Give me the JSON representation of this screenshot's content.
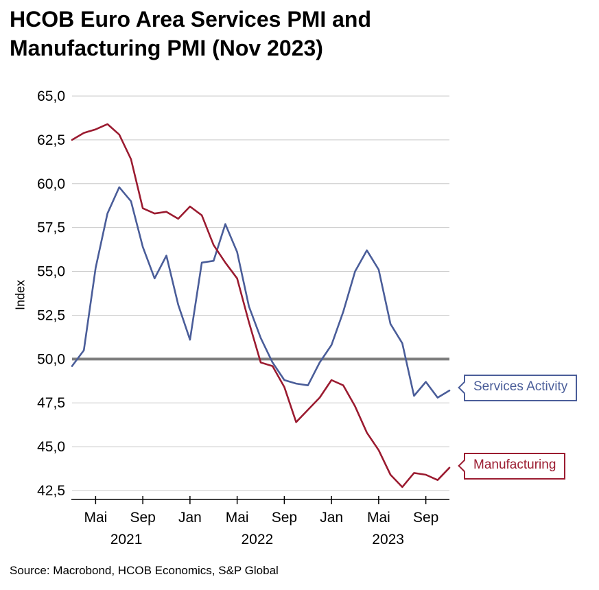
{
  "title": "HCOB Euro Area Services PMI and\nManufacturing PMI (Nov 2023)",
  "source": "Source: Macrobond, HCOB Economics, S&P Global",
  "callouts": {
    "services": {
      "label": "Services Activity",
      "color": "#4a5d99"
    },
    "manufacturing": {
      "label": "Manufacturing",
      "color": "#9b1b30"
    }
  },
  "chart_data": {
    "type": "line",
    "title": "HCOB Euro Area Services PMI and Manufacturing PMI (Nov 2023)",
    "ylabel": "Index",
    "y_min": 42.5,
    "y_max": 65.0,
    "grid": true,
    "grid_color": "#c9c9c9",
    "axis_color": "#000000",
    "reference_line": {
      "value": 50.0,
      "color": "#7d7d7d",
      "width": 4
    },
    "x_frequency": "monthly",
    "x_start": "2021-03",
    "x_end": "2023-11",
    "x_ticks": [
      {
        "index": 2,
        "label": "Mai"
      },
      {
        "index": 6,
        "label": "Sep"
      },
      {
        "index": 10,
        "label": "Jan"
      },
      {
        "index": 14,
        "label": "Mai"
      },
      {
        "index": 18,
        "label": "Sep"
      },
      {
        "index": 22,
        "label": "Jan"
      },
      {
        "index": 26,
        "label": "Mai"
      },
      {
        "index": 30,
        "label": "Sep"
      }
    ],
    "year_labels": [
      {
        "index": 4.6,
        "label": "2021"
      },
      {
        "index": 15.7,
        "label": "2022"
      },
      {
        "index": 26.8,
        "label": "2023"
      }
    ],
    "y_ticks": [
      {
        "value": 65.0,
        "label": "65,0"
      },
      {
        "value": 62.5,
        "label": "62,5"
      },
      {
        "value": 60.0,
        "label": "60,0"
      },
      {
        "value": 57.5,
        "label": "57,5"
      },
      {
        "value": 55.0,
        "label": "55,0"
      },
      {
        "value": 52.5,
        "label": "52,5"
      },
      {
        "value": 50.0,
        "label": "50,0"
      },
      {
        "value": 47.5,
        "label": "47,5"
      },
      {
        "value": 45.0,
        "label": "45,0"
      },
      {
        "value": 42.5,
        "label": "42,5"
      }
    ],
    "series": [
      {
        "key": "services",
        "name": "Services Activity",
        "color": "#4a5d99",
        "values": [
          49.6,
          50.5,
          55.2,
          58.3,
          59.8,
          59.0,
          56.4,
          54.6,
          55.9,
          53.1,
          51.1,
          55.5,
          55.6,
          57.7,
          56.1,
          53.0,
          51.2,
          49.8,
          48.8,
          48.6,
          48.5,
          49.8,
          50.8,
          52.7,
          55.0,
          56.2,
          55.1,
          52.0,
          50.9,
          47.9,
          48.7,
          47.8,
          48.2
        ]
      },
      {
        "key": "manufacturing",
        "name": "Manufacturing",
        "color": "#9b1b30",
        "values": [
          62.5,
          62.9,
          63.1,
          63.4,
          62.8,
          61.4,
          58.6,
          58.3,
          58.4,
          58.0,
          58.7,
          58.2,
          56.5,
          55.5,
          54.6,
          52.1,
          49.8,
          49.6,
          48.4,
          46.4,
          47.1,
          47.8,
          48.8,
          48.5,
          47.3,
          45.8,
          44.8,
          43.4,
          42.7,
          43.5,
          43.4,
          43.1,
          43.8
        ]
      }
    ]
  }
}
